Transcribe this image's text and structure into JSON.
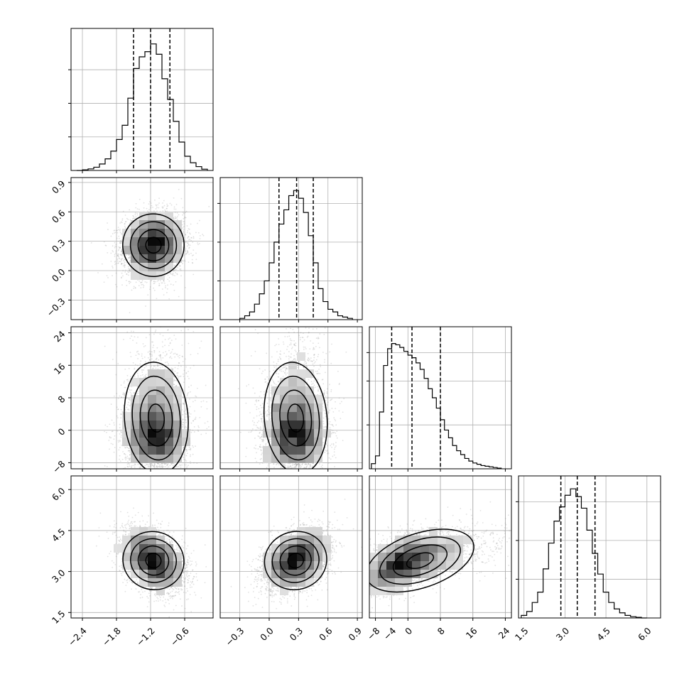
{
  "chart_data": {
    "type": "corner",
    "n_params": 4,
    "params": [
      {
        "range": [
          -2.6,
          -0.1
        ],
        "ticks": [
          -2.4,
          -1.8,
          -1.2,
          -0.6
        ],
        "tick_labels": [
          "−2.4",
          "−1.8",
          "−1.2",
          "−0.6"
        ],
        "quantiles": [
          -1.5,
          -1.2,
          -0.86
        ],
        "hist_peak": 1.0,
        "hist_y_ticks": [
          0.26,
          0.52,
          0.78
        ],
        "hist_bins": [
          -2.5,
          -2.4,
          -2.3,
          -2.2,
          -2.1,
          -2.0,
          -1.9,
          -1.8,
          -1.7,
          -1.6,
          -1.5,
          -1.4,
          -1.3,
          -1.2,
          -1.1,
          -1.0,
          -0.9,
          -0.8,
          -0.7,
          -0.6,
          -0.5,
          -0.4,
          -0.3,
          -0.2
        ],
        "hist_values": [
          0.0,
          0.005,
          0.012,
          0.025,
          0.05,
          0.09,
          0.15,
          0.24,
          0.35,
          0.56,
          0.79,
          0.88,
          0.92,
          0.98,
          0.9,
          0.71,
          0.55,
          0.38,
          0.22,
          0.11,
          0.06,
          0.03,
          0.01
        ]
      },
      {
        "range": [
          -0.5,
          0.95
        ],
        "ticks": [
          -0.3,
          0.0,
          0.3,
          0.6,
          0.9
        ],
        "tick_labels": [
          "−0.3",
          "0.0",
          "0.3",
          "0.6",
          "0.9"
        ],
        "quantiles": [
          0.1,
          0.28,
          0.45
        ],
        "hist_peak": 1.0,
        "hist_y_ticks": [
          0.3,
          0.6,
          0.9
        ],
        "hist_bins": [
          -0.3,
          -0.25,
          -0.2,
          -0.15,
          -0.1,
          -0.05,
          0.0,
          0.05,
          0.1,
          0.15,
          0.2,
          0.25,
          0.3,
          0.35,
          0.4,
          0.45,
          0.5,
          0.55,
          0.6,
          0.65,
          0.7,
          0.75,
          0.8,
          0.85
        ],
        "hist_values": [
          0.01,
          0.03,
          0.06,
          0.12,
          0.2,
          0.3,
          0.44,
          0.6,
          0.74,
          0.85,
          0.96,
          1.0,
          0.94,
          0.83,
          0.65,
          0.44,
          0.24,
          0.14,
          0.08,
          0.06,
          0.03,
          0.02,
          0.01
        ]
      },
      {
        "range": [
          -9.5,
          25.5
        ],
        "ticks": [
          -8,
          0,
          8,
          16,
          24
        ],
        "y_tick_labels": [
          "−8",
          "0",
          "8",
          "16",
          "24"
        ],
        "x_ticks": [
          -8,
          -4,
          0,
          8,
          16,
          24
        ],
        "x_tick_labels": [
          "−8",
          "−4",
          "0",
          "8",
          "16",
          "24"
        ],
        "quantiles": [
          -4.0,
          1.0,
          8.0
        ],
        "hist_peak": 1.0,
        "hist_y_ticks": [
          0.34,
          0.68,
          0.9
        ],
        "hist_bins": [
          -9.0,
          -8.0,
          -7.0,
          -6.0,
          -5.0,
          -4.0,
          -3.0,
          -2.0,
          -1.0,
          0.0,
          1.0,
          2.0,
          3.0,
          4.0,
          5.0,
          6.0,
          7.0,
          8.0,
          9.0,
          10.0,
          11.0,
          12.0,
          13.0,
          14.0,
          15.0,
          16.0,
          17.0,
          18.0,
          19.0,
          20.0,
          21.0,
          22.0,
          23.0
        ],
        "hist_values": [
          0.04,
          0.1,
          0.44,
          0.8,
          0.93,
          0.97,
          0.96,
          0.94,
          0.91,
          0.88,
          0.86,
          0.82,
          0.77,
          0.7,
          0.62,
          0.55,
          0.47,
          0.38,
          0.3,
          0.24,
          0.18,
          0.14,
          0.11,
          0.08,
          0.06,
          0.045,
          0.035,
          0.025,
          0.02,
          0.015,
          0.01,
          0.005
        ]
      },
      {
        "range": [
          1.3,
          6.5
        ],
        "ticks": [
          1.5,
          3.0,
          4.5,
          6.0
        ],
        "tick_labels": [
          "1.5",
          "3.0",
          "4.5",
          "6.0"
        ],
        "quantiles": [
          2.85,
          3.45,
          4.1
        ],
        "hist_peak": 1.0,
        "hist_y_ticks": [
          0.3,
          0.6,
          0.9
        ],
        "hist_bins": [
          1.4,
          1.6,
          1.8,
          2.0,
          2.2,
          2.4,
          2.6,
          2.8,
          3.0,
          3.2,
          3.4,
          3.6,
          3.8,
          4.0,
          4.2,
          4.4,
          4.6,
          4.8,
          5.0,
          5.2,
          5.4,
          5.6,
          5.8,
          6.0
        ],
        "hist_values": [
          0.02,
          0.05,
          0.12,
          0.2,
          0.38,
          0.58,
          0.75,
          0.86,
          0.95,
          1.0,
          0.94,
          0.85,
          0.68,
          0.5,
          0.34,
          0.2,
          0.12,
          0.07,
          0.04,
          0.02,
          0.01,
          0.005,
          0.0
        ]
      }
    ],
    "pairs": [
      {
        "row": 1,
        "col": 0,
        "mean": [
          -1.15,
          0.26
        ],
        "std": [
          0.27,
          0.16
        ],
        "corr": 0.08
      },
      {
        "row": 2,
        "col": 0,
        "mean": [
          -1.1,
          1.5
        ],
        "std": [
          0.28,
          6.0
        ],
        "corr": 0.05,
        "skew_y": 1.0
      },
      {
        "row": 2,
        "col": 1,
        "mean": [
          0.27,
          1.5
        ],
        "std": [
          0.16,
          6.0
        ],
        "corr": 0.06,
        "skew_y": 1.0
      },
      {
        "row": 3,
        "col": 0,
        "mean": [
          -1.15,
          3.4
        ],
        "std": [
          0.27,
          0.55
        ],
        "corr": -0.35
      },
      {
        "row": 3,
        "col": 1,
        "mean": [
          0.27,
          3.4
        ],
        "std": [
          0.16,
          0.55
        ],
        "corr": 0.35
      },
      {
        "row": 3,
        "col": 2,
        "mean": [
          1.5,
          3.4
        ],
        "std": [
          6.0,
          0.55
        ],
        "corr": 0.55,
        "skew_x": 1.0
      }
    ]
  }
}
